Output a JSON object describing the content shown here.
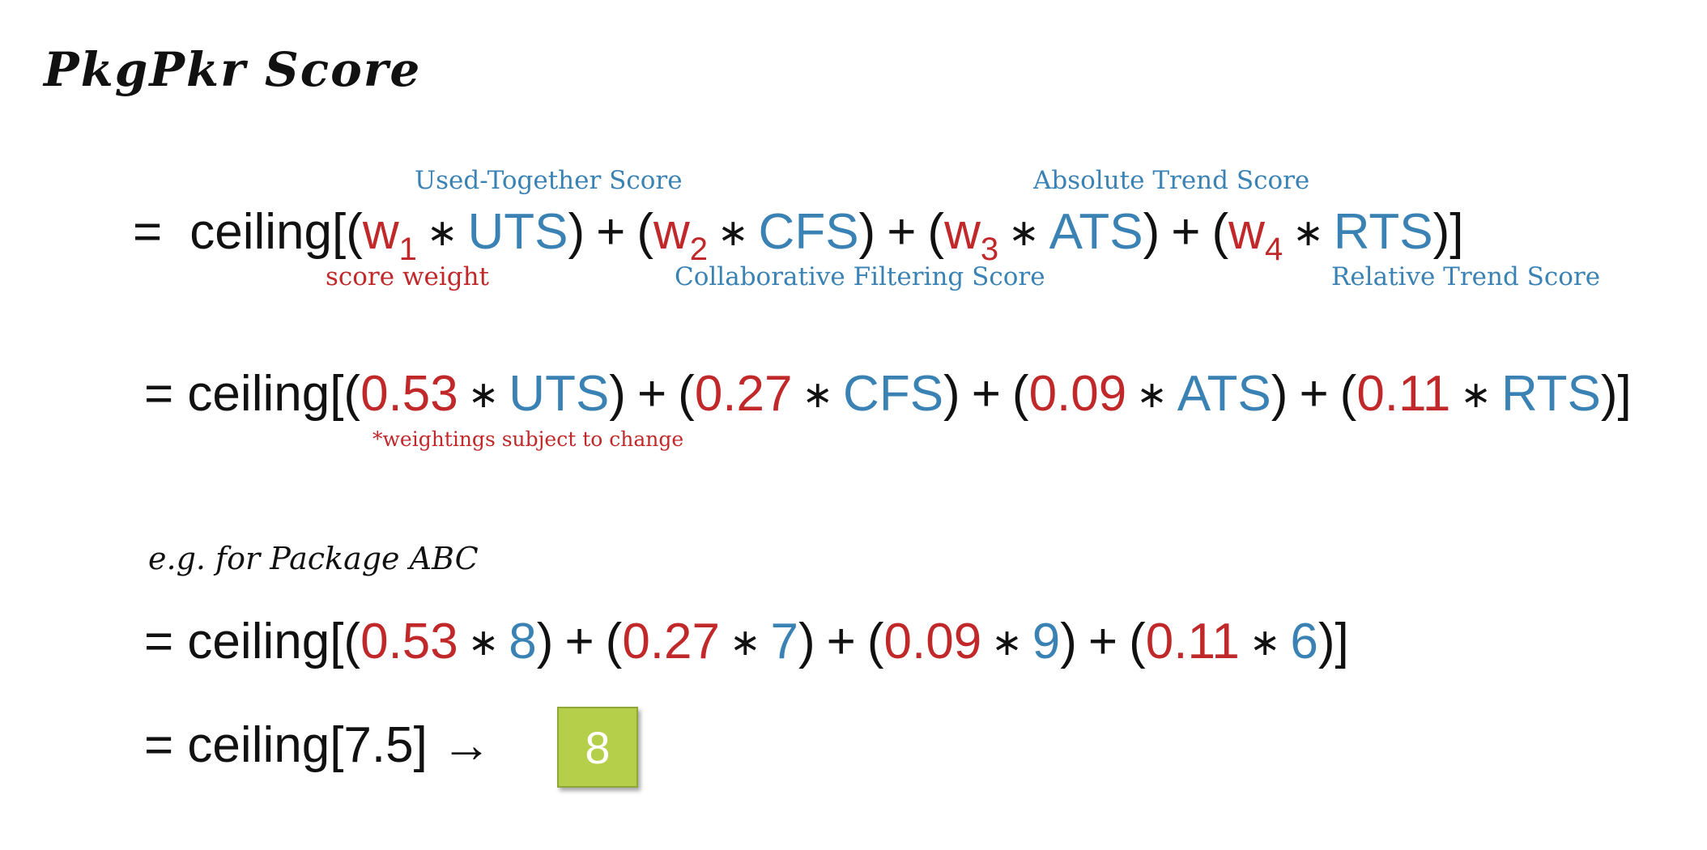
{
  "title": "PkgPkr Score",
  "formula": {
    "prefix": "=",
    "func": "ceiling[(",
    "terms": [
      {
        "weight": "w",
        "sub": "1",
        "score": "UTS"
      },
      {
        "weight": "w",
        "sub": "2",
        "score": "CFS"
      },
      {
        "weight": "w",
        "sub": "3",
        "score": "ATS"
      },
      {
        "weight": "w",
        "sub": "4",
        "score": "RTS"
      }
    ],
    "mult": "∗",
    "plus": "+",
    "close": ")]",
    "annotations": {
      "uts": "Used-Together Score",
      "cfs": "Collaborative Filtering Score",
      "ats": "Absolute Trend Score",
      "rts": "Relative Trend Score",
      "weight": "score weight"
    }
  },
  "weighted": {
    "prefix": "= ceiling[(",
    "weights": [
      "0.53",
      "0.27",
      "0.09",
      "0.11"
    ],
    "scores": [
      "UTS",
      "CFS",
      "ATS",
      "RTS"
    ],
    "note": "*weightings subject to change"
  },
  "example": {
    "label": "e.g. for Package ABC",
    "prefix": "= ceiling[(",
    "weights": [
      "0.53",
      "0.27",
      "0.09",
      "0.11"
    ],
    "values": [
      "8",
      "7",
      "9",
      "6"
    ],
    "result_line": "= ceiling[7.5] →",
    "result": "8",
    "result_color": "#b5cf4a"
  },
  "colors": {
    "weight": "#c0282a",
    "score": "#3a82b4"
  }
}
